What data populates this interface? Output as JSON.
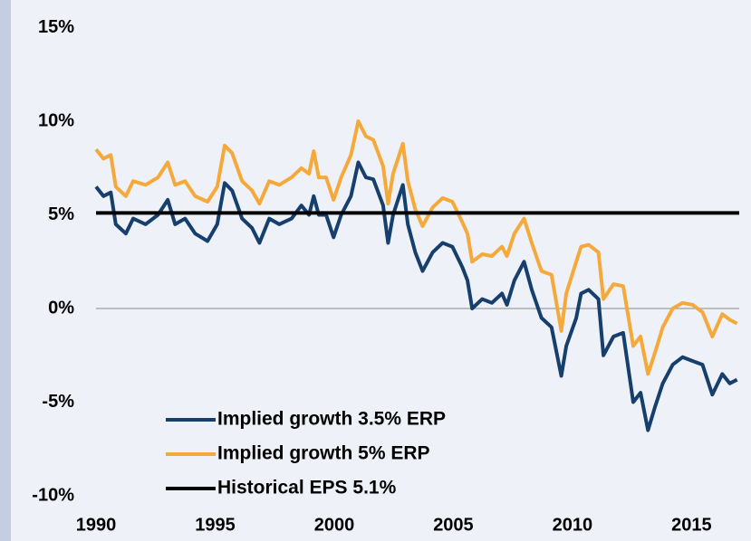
{
  "chart_data": {
    "type": "line",
    "x": [
      1990,
      1990.31,
      1990.62,
      1990.83,
      1991.25,
      1991.56,
      1992.08,
      1992.6,
      1993.01,
      1993.32,
      1993.74,
      1994.16,
      1994.68,
      1995.09,
      1995.4,
      1995.71,
      1996.13,
      1996.55,
      1996.86,
      1997.27,
      1997.69,
      1998.21,
      1998.62,
      1998.94,
      1999.14,
      1999.35,
      1999.66,
      1999.97,
      2000.29,
      2000.7,
      2001.01,
      2001.33,
      2001.64,
      2002.05,
      2002.26,
      2002.47,
      2002.88,
      2003.09,
      2003.4,
      2003.71,
      2004.13,
      2004.55,
      2004.96,
      2005.38,
      2005.59,
      2005.79,
      2006.21,
      2006.62,
      2007.04,
      2007.25,
      2007.56,
      2007.97,
      2008.29,
      2008.7,
      2009.12,
      2009.53,
      2009.74,
      2010.16,
      2010.36,
      2010.68,
      2011.09,
      2011.3,
      2011.72,
      2012.13,
      2012.55,
      2012.86,
      2013.17,
      2013.48,
      2013.79,
      2014.21,
      2014.62,
      2015.04,
      2015.46,
      2015.87,
      2016.29,
      2016.6,
      2016.91
    ],
    "series": [
      {
        "name": "Implied growth 3.5% ERP",
        "color": "#173f6e",
        "values": [
          6.5,
          6.0,
          6.2,
          4.5,
          4.0,
          4.8,
          4.5,
          5.0,
          5.8,
          4.5,
          4.8,
          4.0,
          3.6,
          4.5,
          6.7,
          6.3,
          4.8,
          4.3,
          3.5,
          4.8,
          4.5,
          4.8,
          5.5,
          5.0,
          6.0,
          5.0,
          5.0,
          3.8,
          5.0,
          6.0,
          7.8,
          7.0,
          6.9,
          5.5,
          3.5,
          5.0,
          6.6,
          4.5,
          3.0,
          2.0,
          3.0,
          3.5,
          3.3,
          2.2,
          1.5,
          0.0,
          0.5,
          0.3,
          0.8,
          0.2,
          1.5,
          2.5,
          1.0,
          -0.5,
          -1.0,
          -3.6,
          -2.0,
          -0.5,
          0.8,
          1.0,
          0.5,
          -2.5,
          -1.5,
          -1.3,
          -5.0,
          -4.5,
          -6.5,
          -5.2,
          -4.0,
          -3.0,
          -2.6,
          -2.8,
          -3.0,
          -4.6,
          -3.5,
          -4.0,
          -3.8
        ]
      },
      {
        "name": "Implied growth 5% ERP",
        "color": "#f5a93a",
        "values": [
          8.5,
          8.0,
          8.2,
          6.5,
          6.0,
          6.8,
          6.6,
          7.0,
          7.8,
          6.6,
          6.8,
          6.0,
          5.7,
          6.5,
          8.7,
          8.3,
          6.8,
          6.3,
          5.6,
          6.8,
          6.6,
          7.0,
          7.5,
          7.2,
          8.4,
          7.0,
          7.0,
          5.8,
          7.0,
          8.2,
          10.0,
          9.2,
          9.0,
          7.6,
          5.6,
          7.2,
          8.8,
          6.8,
          5.3,
          4.4,
          5.4,
          5.9,
          5.7,
          4.6,
          4.0,
          2.5,
          2.9,
          2.8,
          3.3,
          2.8,
          4.0,
          4.8,
          3.5,
          2.0,
          1.8,
          -1.2,
          0.8,
          2.5,
          3.3,
          3.4,
          3.0,
          0.5,
          1.3,
          1.2,
          -2.0,
          -1.5,
          -3.5,
          -2.3,
          -1.0,
          0.0,
          0.3,
          0.2,
          -0.2,
          -1.5,
          -0.3,
          -0.6,
          -0.8
        ]
      },
      {
        "name": "Historical EPS 5.1%",
        "color": "#000000",
        "x": [
          1990,
          2017
        ],
        "values": [
          5.1,
          5.1
        ]
      }
    ],
    "xlim": [
      1990,
      2017
    ],
    "xticks": [
      1990,
      1995,
      2000,
      2005,
      2010,
      2015
    ],
    "ylim": [
      -10,
      15
    ],
    "yticks": [
      {
        "value": -10,
        "label": "-10%"
      },
      {
        "value": -5,
        "label": "-5%"
      },
      {
        "value": 0,
        "label": "0%"
      },
      {
        "value": 5,
        "label": "5%"
      },
      {
        "value": 10,
        "label": "10%"
      },
      {
        "value": 15,
        "label": "15%"
      }
    ],
    "grid": false,
    "legend": "lower center"
  }
}
